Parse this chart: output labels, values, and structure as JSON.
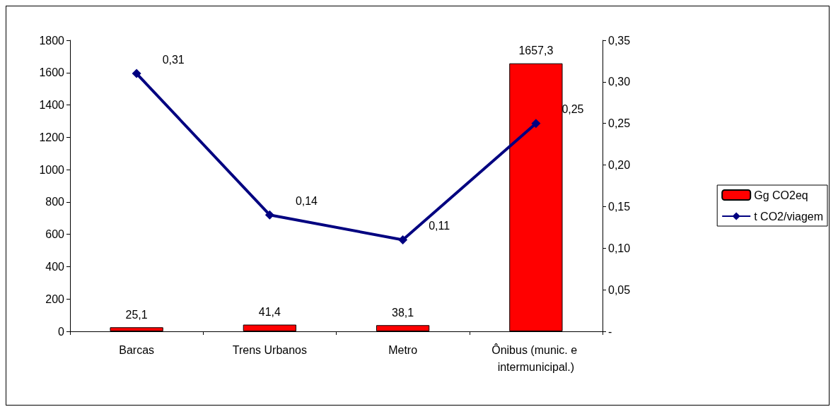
{
  "chart_data": {
    "type": "bar",
    "categories": [
      "Barcas",
      "Trens Urbanos",
      "Metro",
      "Ônibus (munic. e intermunicipal.)"
    ],
    "series": [
      {
        "name": "Gg CO2eq",
        "color": "#ff0000",
        "values": [
          25.1,
          41.4,
          38.1,
          1657.3
        ],
        "value_labels": [
          "25,1",
          "41,4",
          "38,1",
          "1657,3"
        ]
      },
      {
        "name": "t CO2/viagem",
        "type": "line",
        "axis": "y2",
        "color": "#000080",
        "values": [
          0.31,
          0.14,
          0.11,
          0.25
        ],
        "value_labels": [
          "0,31",
          "0,14",
          "0,11",
          "0,25"
        ]
      }
    ],
    "ylim": [
      0,
      1800
    ],
    "yticks": [
      0,
      200,
      400,
      600,
      800,
      1000,
      1200,
      1400,
      1600,
      1800
    ],
    "y2lim": [
      0,
      0.35
    ],
    "y2ticks": [
      {
        "value": 0,
        "label": "-"
      },
      {
        "value": 0.05,
        "label": "0,05"
      },
      {
        "value": 0.1,
        "label": "0,10"
      },
      {
        "value": 0.15,
        "label": "0,15"
      },
      {
        "value": 0.2,
        "label": "0,20"
      },
      {
        "value": 0.25,
        "label": "0,25"
      },
      {
        "value": 0.3,
        "label": "0,30"
      },
      {
        "value": 0.35,
        "label": "0,35"
      }
    ],
    "legend": "right",
    "marker": "diamond",
    "line_style": "solid",
    "grid": false
  }
}
